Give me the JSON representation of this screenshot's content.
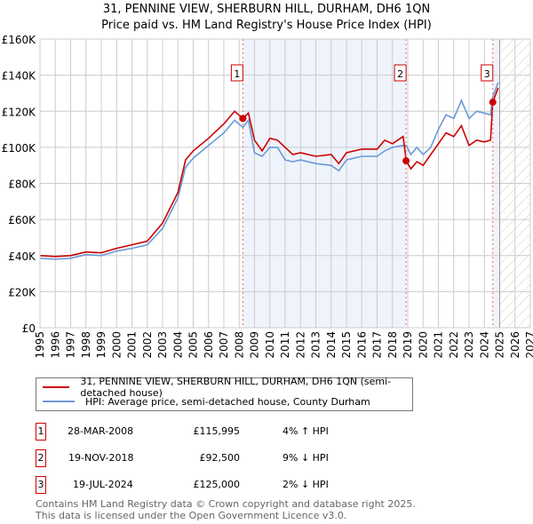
{
  "title_line1": "31, PENNINE VIEW, SHERBURN HILL, DURHAM, DH6 1QN",
  "title_line2": "Price paid vs. HM Land Registry's House Price Index (HPI)",
  "colors": {
    "property": "#cc0000",
    "hpi": "#6a9ad6",
    "shade": "#eef3fc"
  },
  "chart_data": {
    "type": "line",
    "xlim": [
      1995,
      2027
    ],
    "ylim": [
      0,
      160000
    ],
    "x_ticks": [
      "1995",
      "1996",
      "1997",
      "1998",
      "1999",
      "2000",
      "2001",
      "2002",
      "2003",
      "2004",
      "2005",
      "2006",
      "2007",
      "2008",
      "2009",
      "2010",
      "2011",
      "2012",
      "2013",
      "2014",
      "2015",
      "2016",
      "2017",
      "2018",
      "2019",
      "2020",
      "2021",
      "2022",
      "2023",
      "2024",
      "2025",
      "2026",
      "2027"
    ],
    "y_ticks": [
      {
        "v": 0,
        "label": "£0"
      },
      {
        "v": 20000,
        "label": "£20K"
      },
      {
        "v": 40000,
        "label": "£40K"
      },
      {
        "v": 60000,
        "label": "£60K"
      },
      {
        "v": 80000,
        "label": "£80K"
      },
      {
        "v": 100000,
        "label": "£100K"
      },
      {
        "v": 120000,
        "label": "£120K"
      },
      {
        "v": 140000,
        "label": "£140K"
      },
      {
        "v": 160000,
        "label": "£160K"
      }
    ],
    "series": [
      {
        "name": "31, PENNINE VIEW, SHERBURN HILL, DURHAM, DH6 1QN (semi-detached house)",
        "color": "#cc0000",
        "x": [
          1995,
          1996,
          1997,
          1998,
          1999,
          2000,
          2001,
          2002,
          2003,
          2004,
          2004.5,
          2005,
          2006,
          2007,
          2007.7,
          2008.24,
          2008.6,
          2009,
          2009.5,
          2010,
          2010.5,
          2011,
          2011.5,
          2012,
          2013,
          2014,
          2014.5,
          2015,
          2016,
          2017,
          2017.5,
          2018,
          2018.7,
          2018.9,
          2019.2,
          2019.6,
          2020,
          2020.5,
          2021,
          2021.5,
          2022,
          2022.5,
          2023,
          2023.5,
          2024,
          2024.4,
          2024.55,
          2024.9
        ],
        "y": [
          40000,
          39500,
          40000,
          42000,
          41500,
          44000,
          46000,
          48000,
          58000,
          75000,
          93000,
          98000,
          105000,
          113000,
          120000,
          115995,
          119000,
          104000,
          98000,
          105000,
          104000,
          100000,
          96000,
          97000,
          95000,
          96000,
          91000,
          97000,
          99000,
          99000,
          104000,
          102000,
          106000,
          92500,
          88000,
          92000,
          90000,
          96000,
          102000,
          108000,
          106000,
          112000,
          101000,
          104000,
          103000,
          104000,
          125000,
          133000
        ]
      },
      {
        "name": "HPI: Average price, semi-detached house, County Durham",
        "color": "#6a9ad6",
        "x": [
          1995,
          1996,
          1997,
          1998,
          1999,
          2000,
          2001,
          2002,
          2003,
          2004,
          2004.5,
          2005,
          2006,
          2007,
          2007.7,
          2008.24,
          2008.6,
          2009,
          2009.5,
          2010,
          2010.5,
          2011,
          2011.5,
          2012,
          2013,
          2014,
          2014.5,
          2015,
          2016,
          2017,
          2017.5,
          2018,
          2018.7,
          2018.9,
          2019.2,
          2019.6,
          2020,
          2020.5,
          2021,
          2021.5,
          2022,
          2022.5,
          2023,
          2023.5,
          2024,
          2024.4,
          2024.55,
          2024.9
        ],
        "y": [
          38500,
          38000,
          38500,
          40500,
          40000,
          42500,
          44000,
          46000,
          55000,
          72000,
          89000,
          94000,
          101000,
          108000,
          115000,
          111000,
          115000,
          97000,
          95000,
          100000,
          100000,
          93000,
          92000,
          93000,
          91000,
          90000,
          87000,
          93000,
          95000,
          95000,
          98000,
          100000,
          101000,
          101000,
          96000,
          100000,
          96000,
          100000,
          110000,
          118000,
          116000,
          126000,
          116000,
          120000,
          119000,
          118000,
          128000,
          136000
        ]
      }
    ],
    "sales": [
      {
        "n": "1",
        "x": 2008.24,
        "y": 115995
      },
      {
        "n": "2",
        "x": 2018.89,
        "y": 92500
      },
      {
        "n": "3",
        "x": 2024.55,
        "y": 125000
      }
    ]
  },
  "legend": {
    "property": "31, PENNINE VIEW, SHERBURN HILL, DURHAM, DH6 1QN (semi-detached house)",
    "hpi": "HPI: Average price, semi-detached house, County Durham"
  },
  "transactions": [
    {
      "n": "1",
      "date": "28-MAR-2008",
      "price": "£115,995",
      "delta": "4% ↑ HPI"
    },
    {
      "n": "2",
      "date": "19-NOV-2018",
      "price": "£92,500",
      "delta": "9% ↓ HPI"
    },
    {
      "n": "3",
      "date": "19-JUL-2024",
      "price": "£125,000",
      "delta": "2% ↓ HPI"
    }
  ],
  "footer": {
    "line1": "Contains HM Land Registry data © Crown copyright and database right 2025.",
    "line2": "This data is licensed under the Open Government Licence v3.0."
  }
}
